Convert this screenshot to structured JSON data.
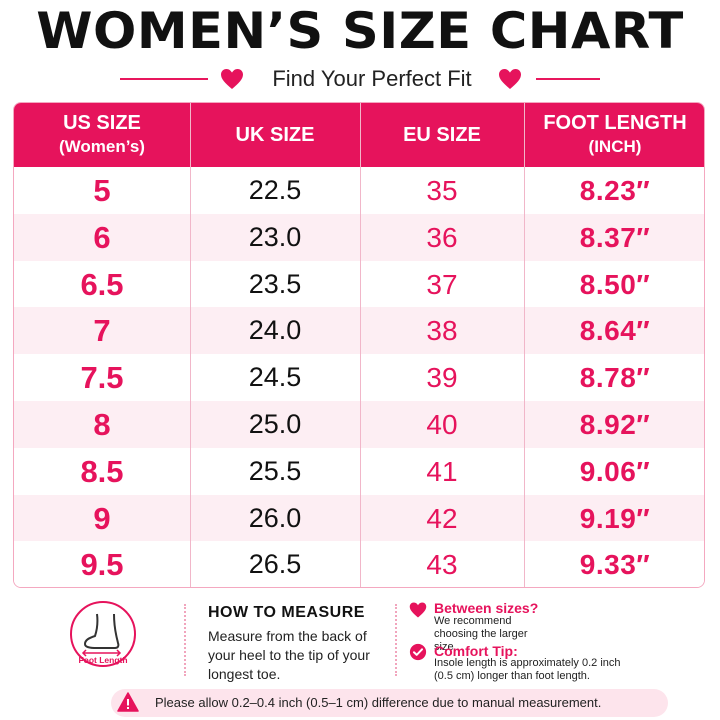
{
  "title": "WOMEN’S SIZE CHART",
  "subtitle": "Find Your Perfect Fit",
  "colors": {
    "accent": "#e6135c",
    "row_alt": "#fdeef3",
    "notice_bg": "#fde4ec"
  },
  "table": {
    "headers": {
      "us": "US SIZE",
      "us_sub": "(Women’s)",
      "uk": "UK SIZE",
      "eu": "EU SIZE",
      "ft": "FOOT LENGTH",
      "ft_sub": "(INCH)"
    },
    "rows": [
      {
        "us": "5",
        "uk": "22.5",
        "eu": "35",
        "ft": "8.23″"
      },
      {
        "us": "6",
        "uk": "23.0",
        "eu": "36",
        "ft": "8.37″"
      },
      {
        "us": "6.5",
        "uk": "23.5",
        "eu": "37",
        "ft": "8.50″"
      },
      {
        "us": "7",
        "uk": "24.0",
        "eu": "38",
        "ft": "8.64″"
      },
      {
        "us": "7.5",
        "uk": "24.5",
        "eu": "39",
        "ft": "8.78″"
      },
      {
        "us": "8",
        "uk": "25.0",
        "eu": "40",
        "ft": "8.92″"
      },
      {
        "us": "8.5",
        "uk": "25.5",
        "eu": "41",
        "ft": "9.06″"
      },
      {
        "us": "9",
        "uk": "26.0",
        "eu": "42",
        "ft": "9.19″"
      },
      {
        "us": "9.5",
        "uk": "26.5",
        "eu": "43",
        "ft": "9.33″"
      }
    ]
  },
  "foot_icon": {
    "icon": "foot-icon",
    "label": "Foot Length"
  },
  "how_to": {
    "title": "HOW TO MEASURE",
    "text": "Measure from the back of your heel to the tip of your longest toe."
  },
  "tips": [
    {
      "icon": "heart-icon",
      "title": "Between sizes?",
      "text": "We recommend choosing the larger size."
    },
    {
      "icon": "check-circle-icon",
      "title": "Comfort Tip:",
      "text": "Insole length is approximately 0.2 inch (0.5 cm) longer than foot length."
    }
  ],
  "notice": {
    "icon": "warning-icon",
    "text": "Please allow 0.2–0.4 inch (0.5–1 cm) difference due to manual measurement."
  }
}
